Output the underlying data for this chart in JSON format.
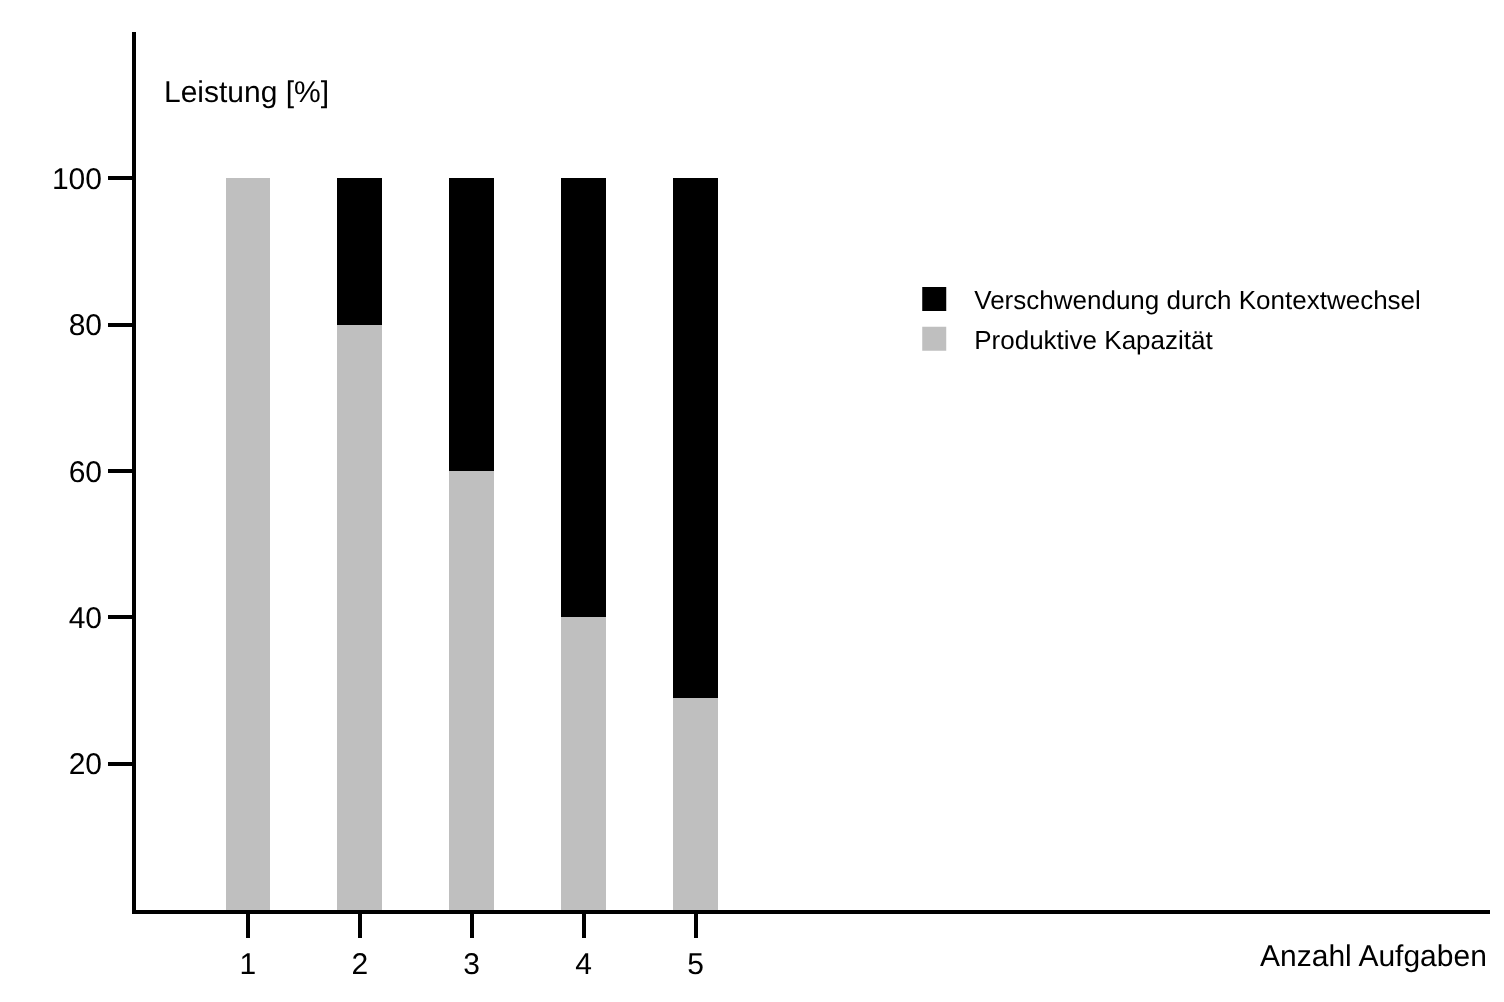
{
  "chart_data": {
    "type": "bar",
    "stacked": true,
    "annotations": [
      "Anzahl Aufgaben"
    ],
    "ylabel": "Leistung [%]",
    "categories": [
      "1",
      "2",
      "3",
      "4",
      "5"
    ],
    "series": [
      {
        "name": "Produktive Kapazität",
        "color": "#bfbfbf",
        "values": [
          100,
          80,
          60,
          40,
          29
        ]
      },
      {
        "name": "Verschwendung durch Kontextwechsel",
        "color": "#000000",
        "values": [
          0,
          20,
          40,
          60,
          71
        ]
      }
    ],
    "ylim": [
      0,
      120
    ],
    "yticks": [
      20,
      40,
      60,
      80,
      100
    ],
    "legend": "top right"
  }
}
